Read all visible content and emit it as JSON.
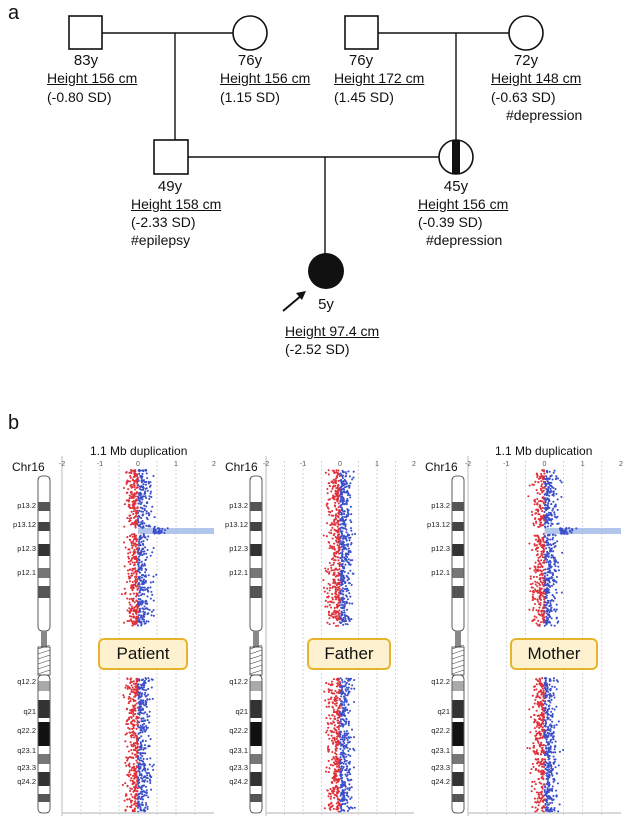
{
  "panel_a": {
    "label": "a",
    "members": {
      "paternal_grandfather": {
        "age": "83y",
        "height": "Height 156 cm",
        "sd": "(-0.80 SD)",
        "note": ""
      },
      "paternal_grandmother": {
        "age": "76y",
        "height": "Height 156 cm",
        "sd": "(1.15 SD)",
        "note": ""
      },
      "maternal_grandfather": {
        "age": "76y",
        "height": "Height 172 cm",
        "sd": "(1.45 SD)",
        "note": ""
      },
      "maternal_grandmother": {
        "age": "72y",
        "height": "Height 148 cm",
        "sd": "(-0.63 SD)",
        "note": "#depression"
      },
      "father": {
        "age": "49y",
        "height": "Height 158 cm",
        "sd": "(-2.33 SD)",
        "note": "#epilepsy"
      },
      "mother": {
        "age": "45y",
        "height": "Height 156 cm",
        "sd": "(-0.39 SD)",
        "note": "#depression"
      },
      "proband": {
        "age": "5y",
        "height": "Height 97.4 cm",
        "sd": "(-2.52 SD)",
        "note": ""
      }
    }
  },
  "panel_b": {
    "label": "b",
    "chromosome": "Chr16",
    "bands": [
      "p13.2",
      "p13.12",
      "p12.3",
      "p12.1",
      "q12.2",
      "q21",
      "q22.2",
      "q23.1",
      "q23.3",
      "q24.2"
    ],
    "axis_ticks": [
      "-2",
      "-1",
      "0",
      "1",
      "2"
    ],
    "plots": [
      {
        "tag": "Patient",
        "title": "1.1 Mb duplication"
      },
      {
        "tag": "Father",
        "title": ""
      },
      {
        "tag": "Mother",
        "title": "1.1 Mb duplication"
      }
    ]
  },
  "colors": {
    "loss": "#e0303a",
    "gain": "#3b4fc9",
    "highlight": "#9fb6e6",
    "tag_border": "#e7b52c",
    "tag_fill": "#fdf1cf"
  }
}
